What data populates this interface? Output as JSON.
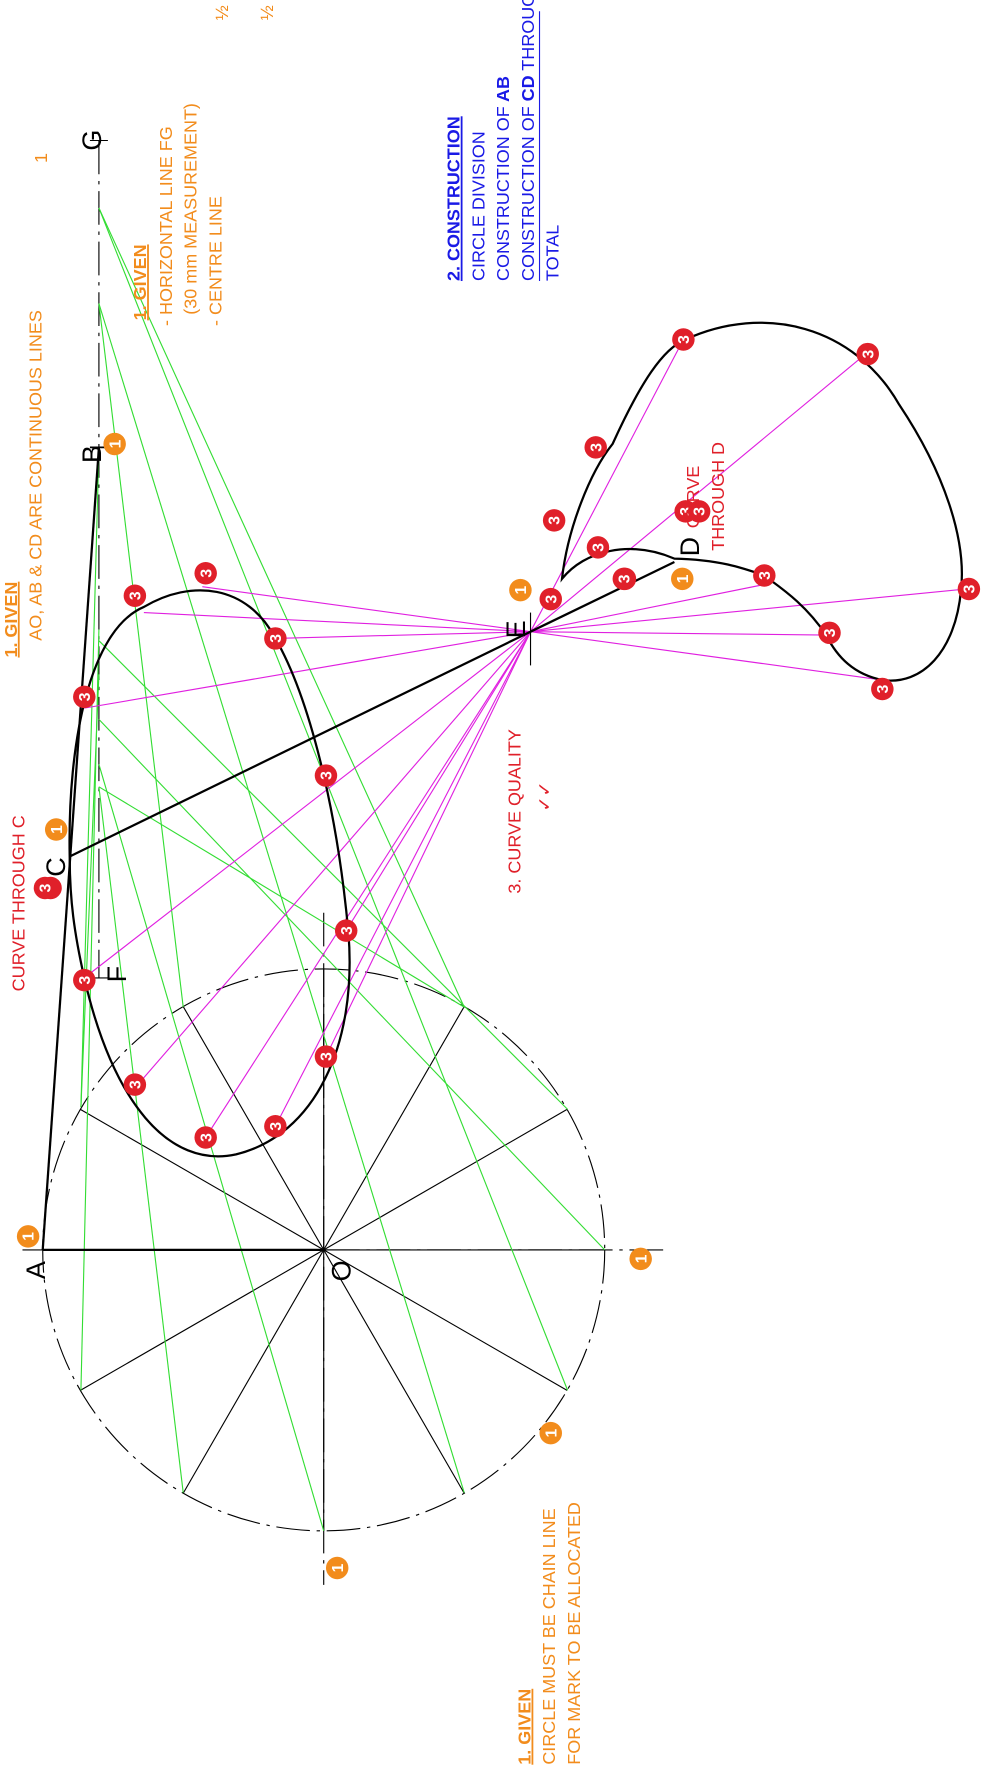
{
  "notes": {
    "given_lines": {
      "heading": "1. GIVEN",
      "text": "AO, AB & CD ARE CONTINUOUS LINES",
      "mark": "1"
    },
    "given_fg": {
      "heading": "1. GIVEN",
      "lines": [
        "- HORIZONTAL LINE FG",
        "(30 mm MEASUREMENT)",
        "- CENTRE LINE"
      ]
    },
    "given_circle": {
      "heading": "1. GIVEN",
      "lines": [
        "CIRCLE MUST BE CHAIN LINE",
        "FOR MARK TO BE ALLOCATED"
      ]
    },
    "construction": {
      "heading": "2. CONSTRUCTION",
      "circle_division": "CIRCLE DIVISION",
      "ab_prefix": "CONSTRUCTION OF",
      "ab": "AB",
      "cd_prefix": "CONSTRUCTION OF",
      "cd": "CD",
      "cd_suffix": "THROUGH",
      "total": "TOTAL"
    },
    "curve_c": "CURVE THROUGH C",
    "curve_d": [
      "CURVE",
      "THROUGH D"
    ],
    "curve_quality": "3. CURVE QUALITY",
    "quality_ticks": "✓✓"
  },
  "fractions": [
    "½",
    "½"
  ],
  "points": {
    "A": "A",
    "O": "O",
    "B": "B",
    "G": "G",
    "C": "C",
    "F": "F",
    "E": "E",
    "D": "D"
  },
  "badges": [
    "1",
    "1",
    "1",
    "1",
    "1",
    "1",
    "1",
    "1",
    "3",
    "3",
    "3",
    "3",
    "3",
    "3",
    "3",
    "3",
    "3",
    "3",
    "3",
    "3",
    "3",
    "3",
    "3",
    "3",
    "3",
    "3",
    "3",
    "3",
    "3",
    "3",
    "3",
    "3",
    "3",
    "3",
    "3"
  ]
}
